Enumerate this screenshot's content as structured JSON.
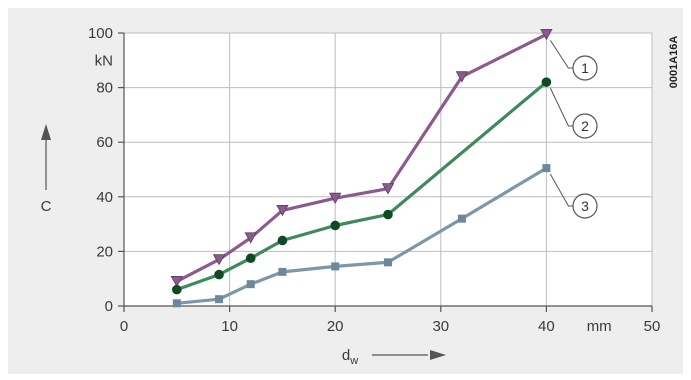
{
  "figure_id": "0001A16A",
  "chart_data": {
    "type": "line",
    "xlabel": "d",
    "xlabel_sub": "w",
    "xunit": "mm",
    "ylabel": "C",
    "yunit": "kN",
    "xlim": [
      0,
      50
    ],
    "ylim": [
      0,
      100
    ],
    "xticks": [
      0,
      10,
      20,
      30,
      40,
      50
    ],
    "yticks": [
      0,
      20,
      40,
      60,
      80,
      100
    ],
    "grid": true,
    "series": [
      {
        "name": "1",
        "color": "#8b5a8f",
        "marker": "triangle-down",
        "x": [
          5,
          9,
          12,
          15,
          20,
          25,
          32,
          40
        ],
        "y": [
          9,
          17,
          25,
          35,
          39.5,
          43,
          84,
          99.5
        ]
      },
      {
        "name": "2",
        "color": "#3f8a5a",
        "marker": "circle",
        "x": [
          5,
          9,
          12,
          15,
          20,
          25,
          40
        ],
        "y": [
          6,
          11.5,
          17.5,
          24,
          29.5,
          33.5,
          82
        ]
      },
      {
        "name": "3",
        "color": "#7a98a8",
        "marker": "square",
        "x": [
          5,
          9,
          12,
          15,
          20,
          25,
          32,
          40
        ],
        "y": [
          1,
          2.5,
          8,
          12.5,
          14.5,
          16,
          32,
          50.5
        ]
      }
    ]
  }
}
